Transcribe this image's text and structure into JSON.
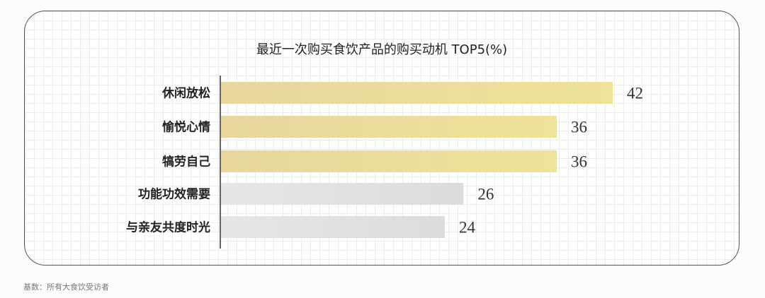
{
  "chart_data": {
    "type": "bar",
    "orientation": "horizontal",
    "title": "最近一次购买食饮产品的购买动机 TOP5(%)",
    "categories": [
      "休闲放松",
      "愉悦心情",
      "犒劳自己",
      "功能功效需要",
      "与亲友共度时光"
    ],
    "values": [
      42,
      36,
      36,
      26,
      24
    ],
    "highlight_color": "#eee39a",
    "highlight_color_start": "#e8d69c",
    "other_color": "#dcdcdc",
    "highlighted_count": 3,
    "grid": true
  },
  "footnote": "基数：所有大食饮受访者"
}
